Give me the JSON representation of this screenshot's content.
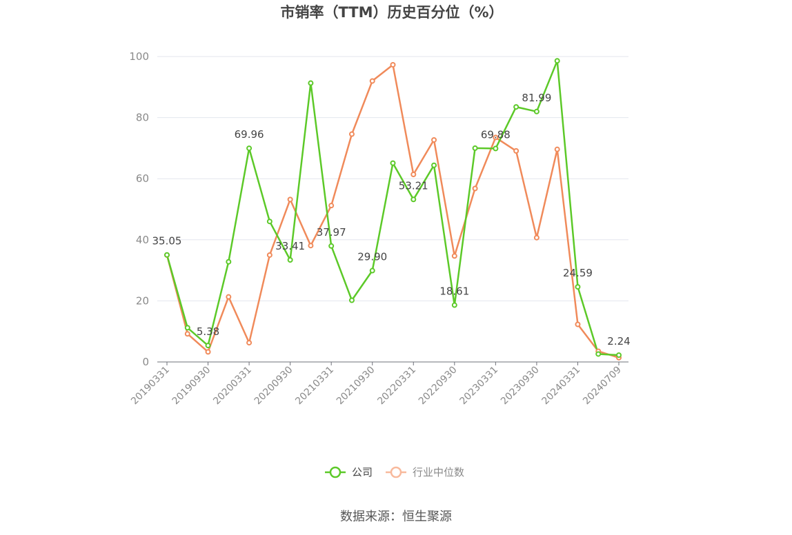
{
  "chart_data": {
    "type": "line",
    "title": "市销率（TTM）历史百分位（%）",
    "source": "数据来源：恒生聚源",
    "ylim": [
      0,
      100
    ],
    "y_ticks": [
      0,
      20,
      40,
      60,
      80,
      100
    ],
    "grid": true,
    "legend_position": "bottom-center",
    "x": [
      "20190331",
      "20190630",
      "20190930",
      "20191231",
      "20200331",
      "20200630",
      "20200930",
      "20201231",
      "20210331",
      "20210630",
      "20210930",
      "20211231",
      "20220331",
      "20220630",
      "20220930",
      "20221231",
      "20230331",
      "20230630",
      "20230930",
      "20231231",
      "20240331",
      "20240630",
      "20240709"
    ],
    "x_tick_labels": [
      "20190331",
      "20190930",
      "20200331",
      "20200930",
      "20210331",
      "20210930",
      "20220331",
      "20220930",
      "20230331",
      "20230930",
      "20240331",
      "20240709"
    ],
    "series": [
      {
        "name": "公司",
        "color": "#5cc928",
        "values": [
          35.05,
          11.2,
          5.38,
          32.8,
          69.96,
          46.0,
          33.41,
          91.3,
          37.97,
          20.2,
          29.9,
          65.1,
          53.21,
          64.4,
          18.61,
          70.0,
          69.88,
          83.5,
          81.99,
          98.6,
          24.59,
          2.6,
          2.24
        ],
        "labels": [
          "35.05",
          null,
          "5.38",
          null,
          "69.96",
          null,
          "33.41",
          null,
          "37.97",
          null,
          "29.90",
          null,
          "53.21",
          null,
          "18.61",
          null,
          "69.88",
          null,
          "81.99",
          null,
          "24.59",
          null,
          "2.24"
        ]
      },
      {
        "name": "行业中位数",
        "color": "#f08a5a",
        "values": [
          35.0,
          9.2,
          3.3,
          21.3,
          6.3,
          35.0,
          53.2,
          38.1,
          51.2,
          74.6,
          92.0,
          97.3,
          61.4,
          72.7,
          34.7,
          56.8,
          73.5,
          69.1,
          40.7,
          69.6,
          12.3,
          3.5,
          1.4
        ]
      }
    ]
  }
}
